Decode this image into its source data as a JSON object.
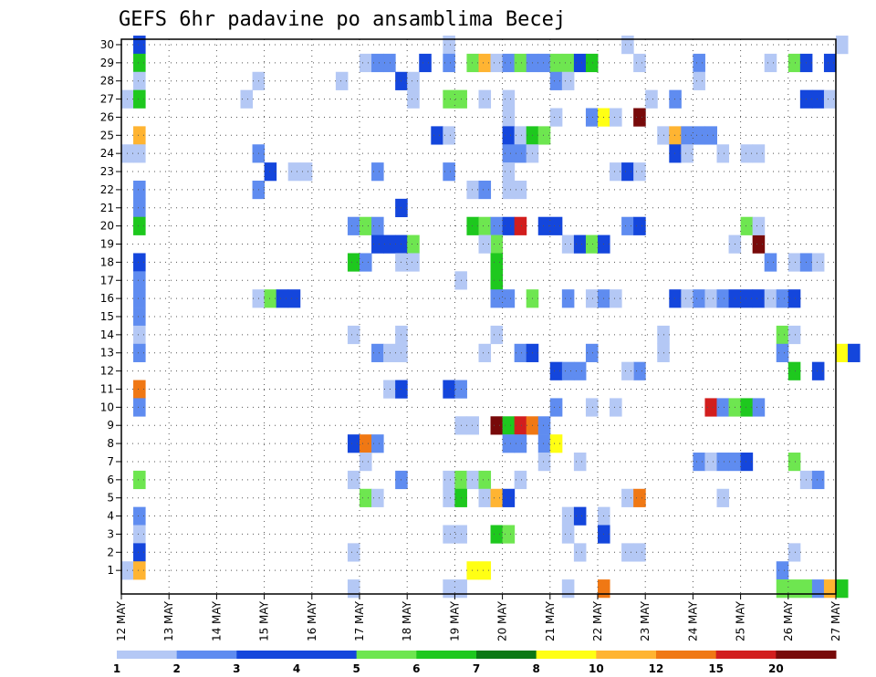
{
  "chart_data": {
    "type": "heatmap",
    "title": "GEFS 6hr padavine po ansamblima Becej",
    "y_ticks": [
      1,
      2,
      3,
      4,
      5,
      6,
      7,
      8,
      9,
      10,
      11,
      12,
      13,
      14,
      15,
      16,
      17,
      18,
      19,
      20,
      21,
      22,
      23,
      24,
      25,
      26,
      27,
      28,
      29,
      30
    ],
    "x_ticks": [
      "12 MAY",
      "13 MAY",
      "14 MAY",
      "15 MAY",
      "16 MAY",
      "17 MAY",
      "18 MAY",
      "19 MAY",
      "20 MAY",
      "21 MAY",
      "22 MAY",
      "23 MAY",
      "24 MAY",
      "25 MAY",
      "26 MAY",
      "27 MAY"
    ],
    "x_range_days": [
      12,
      27
    ],
    "y_range": [
      0,
      30
    ],
    "grid": true,
    "colorbar": {
      "levels": [
        1,
        2,
        3,
        4,
        5,
        6,
        7,
        8,
        10,
        12,
        15,
        20
      ],
      "labels": [
        "1",
        "2",
        "3",
        "4",
        "5",
        "6",
        "7",
        "8",
        "10",
        "12",
        "15",
        "20"
      ],
      "colors": [
        "#b4c8f5",
        "#5f8cf0",
        "#1446dc",
        "#1446dc",
        "#6ee650",
        "#1ec81e",
        "#0a7814",
        "#ffff14",
        "#ffb432",
        "#f07814",
        "#d21e1e",
        "#780a0a"
      ]
    },
    "cells": [
      [
        12.25,
        30,
        4
      ],
      [
        12.25,
        29,
        6
      ],
      [
        12.25,
        28,
        1
      ],
      [
        12.0,
        27,
        1
      ],
      [
        12.25,
        27,
        6
      ],
      [
        12.25,
        25,
        10
      ],
      [
        12.0,
        24,
        1
      ],
      [
        12.25,
        24,
        1
      ],
      [
        12.25,
        22,
        2
      ],
      [
        12.25,
        21,
        2
      ],
      [
        12.25,
        20,
        6
      ],
      [
        12.25,
        18,
        3
      ],
      [
        12.25,
        17,
        2
      ],
      [
        12.25,
        16,
        2
      ],
      [
        12.25,
        15,
        2
      ],
      [
        12.25,
        14,
        1
      ],
      [
        12.25,
        13,
        2
      ],
      [
        12.25,
        11,
        12
      ],
      [
        12.25,
        10,
        2
      ],
      [
        12.25,
        6,
        5
      ],
      [
        12.25,
        4,
        2
      ],
      [
        12.25,
        3,
        1
      ],
      [
        12.25,
        2,
        3
      ],
      [
        12.0,
        1,
        1
      ],
      [
        12.25,
        1,
        10
      ],
      [
        14.5,
        27,
        1
      ],
      [
        14.75,
        28,
        1
      ],
      [
        14.75,
        24,
        2
      ],
      [
        14.75,
        22,
        2
      ],
      [
        15.0,
        23,
        3
      ],
      [
        15.5,
        23,
        1
      ],
      [
        15.75,
        23,
        1
      ],
      [
        14.75,
        16,
        1
      ],
      [
        15.0,
        16,
        5
      ],
      [
        15.25,
        16,
        3
      ],
      [
        15.5,
        16,
        3
      ],
      [
        16.5,
        28,
        1
      ],
      [
        17.0,
        29,
        1
      ],
      [
        17.25,
        29,
        2
      ],
      [
        17.5,
        29,
        2
      ],
      [
        17.75,
        28,
        3
      ],
      [
        18.0,
        28,
        1
      ],
      [
        18.0,
        27,
        1
      ],
      [
        18.25,
        29,
        3
      ],
      [
        17.25,
        23,
        2
      ],
      [
        17.75,
        21,
        3
      ],
      [
        16.75,
        20,
        2
      ],
      [
        17.0,
        20,
        5
      ],
      [
        17.25,
        20,
        2
      ],
      [
        17.25,
        19,
        3
      ],
      [
        17.5,
        19,
        3
      ],
      [
        17.75,
        19,
        3
      ],
      [
        18.0,
        19,
        5
      ],
      [
        16.75,
        18,
        6
      ],
      [
        17.0,
        18,
        2
      ],
      [
        17.75,
        18,
        1
      ],
      [
        18.0,
        18,
        1
      ],
      [
        17.25,
        13,
        2
      ],
      [
        17.5,
        13,
        1
      ],
      [
        17.75,
        13,
        1
      ],
      [
        16.75,
        14,
        1
      ],
      [
        17.75,
        14,
        1
      ],
      [
        17.5,
        11,
        1
      ],
      [
        17.75,
        11,
        3
      ],
      [
        16.75,
        8,
        3
      ],
      [
        17.0,
        8,
        14
      ],
      [
        17.25,
        8,
        2
      ],
      [
        17.0,
        7,
        1
      ],
      [
        16.75,
        6,
        1
      ],
      [
        17.75,
        6,
        2
      ],
      [
        17.0,
        5,
        5
      ],
      [
        17.25,
        5,
        1
      ],
      [
        16.75,
        2,
        1
      ],
      [
        16.75,
        0,
        1
      ],
      [
        18.75,
        30,
        1
      ],
      [
        18.75,
        29,
        2
      ],
      [
        18.75,
        23,
        2
      ],
      [
        18.5,
        25,
        3
      ],
      [
        18.75,
        25,
        1
      ],
      [
        18.75,
        27,
        5
      ],
      [
        19.0,
        27,
        5
      ],
      [
        19.5,
        27,
        1
      ],
      [
        19.25,
        29,
        5
      ],
      [
        19.5,
        29,
        10
      ],
      [
        19.75,
        29,
        1
      ],
      [
        20.0,
        29,
        2
      ],
      [
        20.25,
        29,
        5
      ],
      [
        20.5,
        29,
        2
      ],
      [
        20.75,
        29,
        2
      ],
      [
        21.0,
        29,
        5
      ],
      [
        21.25,
        29,
        5
      ],
      [
        21.5,
        29,
        3
      ],
      [
        21.75,
        29,
        6
      ],
      [
        19.25,
        22,
        1
      ],
      [
        19.5,
        22,
        2
      ],
      [
        20.0,
        22,
        1
      ],
      [
        20.25,
        22,
        1
      ],
      [
        19.25,
        20,
        6
      ],
      [
        19.5,
        20,
        5
      ],
      [
        19.75,
        20,
        2
      ],
      [
        20.0,
        20,
        3
      ],
      [
        20.25,
        20,
        15
      ],
      [
        20.75,
        20,
        3
      ],
      [
        19.75,
        19,
        5
      ],
      [
        19.5,
        19,
        1
      ],
      [
        19.75,
        18,
        6
      ],
      [
        19.75,
        17,
        6
      ],
      [
        19.0,
        17,
        1
      ],
      [
        19.75,
        16,
        2
      ],
      [
        20.0,
        16,
        2
      ],
      [
        20.5,
        16,
        5
      ],
      [
        19.75,
        14,
        1
      ],
      [
        19.5,
        13,
        1
      ],
      [
        20.25,
        13,
        2
      ],
      [
        20.5,
        13,
        3
      ],
      [
        18.75,
        11,
        3
      ],
      [
        19.0,
        11,
        2
      ],
      [
        19.0,
        9,
        1
      ],
      [
        19.25,
        9,
        1
      ],
      [
        19.75,
        9,
        20
      ],
      [
        20.0,
        9,
        6
      ],
      [
        20.25,
        9,
        15
      ],
      [
        20.5,
        9,
        14
      ],
      [
        20.75,
        9,
        2
      ],
      [
        20.0,
        8,
        2
      ],
      [
        20.25,
        8,
        2
      ],
      [
        20.75,
        8,
        2
      ],
      [
        21.0,
        8,
        8
      ],
      [
        20.75,
        7,
        1
      ],
      [
        18.75,
        6,
        1
      ],
      [
        19.0,
        6,
        5
      ],
      [
        19.25,
        6,
        1
      ],
      [
        19.5,
        6,
        5
      ],
      [
        20.25,
        6,
        1
      ],
      [
        18.75,
        5,
        1
      ],
      [
        19.0,
        5,
        6
      ],
      [
        19.5,
        5,
        1
      ],
      [
        19.75,
        5,
        10
      ],
      [
        20.0,
        5,
        3
      ],
      [
        18.75,
        3,
        1
      ],
      [
        19.0,
        3,
        1
      ],
      [
        19.75,
        3,
        6
      ],
      [
        20.0,
        3,
        5
      ],
      [
        19.25,
        1,
        8
      ],
      [
        19.5,
        1,
        8
      ],
      [
        18.75,
        0,
        1
      ],
      [
        19.0,
        0,
        1
      ],
      [
        21.0,
        28,
        2
      ],
      [
        21.25,
        28,
        1
      ],
      [
        20.0,
        27,
        1
      ],
      [
        20.0,
        26,
        1
      ],
      [
        21.0,
        26,
        1
      ],
      [
        21.75,
        26,
        2
      ],
      [
        22.0,
        26,
        8
      ],
      [
        22.25,
        26,
        1
      ],
      [
        22.75,
        26,
        20
      ],
      [
        20.0,
        25,
        3
      ],
      [
        20.25,
        25,
        1
      ],
      [
        20.5,
        25,
        6
      ],
      [
        20.75,
        25,
        5
      ],
      [
        20.0,
        24,
        2
      ],
      [
        20.25,
        24,
        2
      ],
      [
        20.5,
        24,
        1
      ],
      [
        20.0,
        23,
        1
      ],
      [
        21.25,
        19,
        1
      ],
      [
        21.5,
        19,
        3
      ],
      [
        21.75,
        19,
        5
      ],
      [
        22.0,
        19,
        3
      ],
      [
        21.0,
        20,
        3
      ],
      [
        21.25,
        16,
        2
      ],
      [
        21.75,
        16,
        1
      ],
      [
        22.0,
        16,
        2
      ],
      [
        22.25,
        16,
        1
      ],
      [
        21.0,
        12,
        3
      ],
      [
        21.25,
        12,
        2
      ],
      [
        21.5,
        12,
        2
      ],
      [
        21.75,
        13,
        2
      ],
      [
        21.0,
        10,
        2
      ],
      [
        21.75,
        10,
        1
      ],
      [
        22.25,
        10,
        1
      ],
      [
        21.5,
        7,
        1
      ],
      [
        21.25,
        4,
        1
      ],
      [
        21.5,
        4,
        3
      ],
      [
        22.0,
        4,
        1
      ],
      [
        21.25,
        3,
        1
      ],
      [
        22.0,
        3,
        3
      ],
      [
        21.5,
        2,
        1
      ],
      [
        21.25,
        0,
        1
      ],
      [
        22.0,
        0,
        12
      ],
      [
        22.5,
        30,
        1
      ],
      [
        22.75,
        29,
        1
      ],
      [
        22.25,
        23,
        1
      ],
      [
        22.5,
        23,
        3
      ],
      [
        22.75,
        23,
        1
      ],
      [
        22.5,
        20,
        2
      ],
      [
        22.75,
        20,
        3
      ],
      [
        22.75,
        12,
        2
      ],
      [
        22.5,
        12,
        1
      ],
      [
        22.5,
        5,
        1
      ],
      [
        22.75,
        5,
        12
      ],
      [
        22.5,
        2,
        1
      ],
      [
        22.75,
        2,
        1
      ],
      [
        23.0,
        27,
        1
      ],
      [
        23.25,
        25,
        1
      ],
      [
        23.5,
        25,
        10
      ],
      [
        23.75,
        25,
        2
      ],
      [
        24.0,
        25,
        2
      ],
      [
        24.25,
        25,
        2
      ],
      [
        23.5,
        24,
        3
      ],
      [
        23.75,
        24,
        1
      ],
      [
        23.5,
        27,
        2
      ],
      [
        24.0,
        29,
        2
      ],
      [
        24.0,
        28,
        1
      ],
      [
        23.5,
        16,
        3
      ],
      [
        23.75,
        16,
        1
      ],
      [
        24.0,
        16,
        2
      ],
      [
        24.25,
        16,
        1
      ],
      [
        24.5,
        16,
        2
      ],
      [
        24.75,
        16,
        3
      ],
      [
        25.0,
        16,
        3
      ],
      [
        25.25,
        16,
        3
      ],
      [
        25.5,
        16,
        1
      ],
      [
        25.75,
        16,
        2
      ],
      [
        26.0,
        16,
        3
      ],
      [
        23.25,
        14,
        1
      ],
      [
        23.25,
        13,
        1
      ],
      [
        24.25,
        10,
        15
      ],
      [
        24.5,
        10,
        2
      ],
      [
        24.75,
        10,
        5
      ],
      [
        25.0,
        10,
        6
      ],
      [
        25.25,
        10,
        2
      ],
      [
        24.0,
        7,
        2
      ],
      [
        24.25,
        7,
        1
      ],
      [
        24.5,
        7,
        2
      ],
      [
        24.75,
        7,
        2
      ],
      [
        25.0,
        7,
        3
      ],
      [
        24.5,
        5,
        1
      ],
      [
        24.75,
        19,
        1
      ],
      [
        24.5,
        24,
        1
      ],
      [
        25.0,
        24,
        1
      ],
      [
        25.25,
        24,
        1
      ],
      [
        25.5,
        29,
        1
      ],
      [
        25.25,
        19,
        20
      ],
      [
        25.0,
        20,
        5
      ],
      [
        25.25,
        20,
        1
      ],
      [
        25.5,
        18,
        2
      ],
      [
        26.0,
        18,
        1
      ],
      [
        26.25,
        18,
        2
      ],
      [
        26.5,
        18,
        1
      ],
      [
        26.0,
        29,
        5
      ],
      [
        26.25,
        29,
        3
      ],
      [
        26.75,
        29,
        3
      ],
      [
        27.0,
        30,
        1
      ],
      [
        26.25,
        27,
        3
      ],
      [
        26.5,
        27,
        3
      ],
      [
        26.75,
        27,
        1
      ],
      [
        25.75,
        14,
        5
      ],
      [
        26.0,
        14,
        1
      ],
      [
        25.75,
        13,
        2
      ],
      [
        26.0,
        12,
        6
      ],
      [
        26.5,
        12,
        3
      ],
      [
        26.0,
        7,
        5
      ],
      [
        26.25,
        6,
        1
      ],
      [
        26.5,
        6,
        2
      ],
      [
        27.0,
        13,
        8
      ],
      [
        27.25,
        13,
        3
      ],
      [
        26.0,
        2,
        1
      ],
      [
        25.75,
        1,
        2
      ],
      [
        25.75,
        0,
        5
      ],
      [
        26.0,
        0,
        5
      ],
      [
        26.25,
        0,
        5
      ],
      [
        26.5,
        0,
        2
      ],
      [
        26.75,
        0,
        10
      ],
      [
        27.0,
        0,
        6
      ]
    ]
  }
}
